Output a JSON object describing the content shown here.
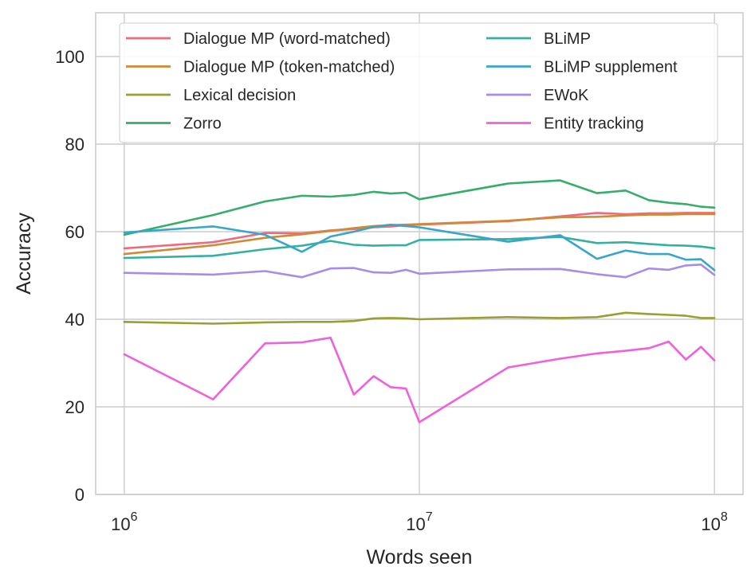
{
  "chart_data": {
    "type": "line",
    "xlabel": "Words seen",
    "ylabel": "Accuracy",
    "x_scale": "log",
    "xlim": [
      800000,
      125000000
    ],
    "ylim": [
      0,
      110
    ],
    "grid": true,
    "legend_position": "top",
    "x_ticks": [
      {
        "value": 1000000,
        "base": "10",
        "exp": "6"
      },
      {
        "value": 10000000,
        "base": "10",
        "exp": "7"
      },
      {
        "value": 100000000,
        "base": "10",
        "exp": "8"
      }
    ],
    "y_ticks": [
      {
        "value": 0,
        "label": "0"
      },
      {
        "value": 20,
        "label": "20"
      },
      {
        "value": 40,
        "label": "40"
      },
      {
        "value": 60,
        "label": "60"
      },
      {
        "value": 80,
        "label": "80"
      },
      {
        "value": 100,
        "label": "100"
      }
    ],
    "series": [
      {
        "name": "Dialogue MP (word-matched)",
        "color": "#f0697d",
        "legend_col": 0,
        "points": [
          [
            1000000,
            56.2
          ],
          [
            2000000,
            57.6
          ],
          [
            3000000,
            59.7
          ],
          [
            4000000,
            59.6
          ],
          [
            5000000,
            60.3
          ],
          [
            6000000,
            60.6
          ],
          [
            7000000,
            61.0
          ],
          [
            8000000,
            61.2
          ],
          [
            9000000,
            61.5
          ],
          [
            10000000,
            61.6
          ],
          [
            20000000,
            62.4
          ],
          [
            30000000,
            63.5
          ],
          [
            40000000,
            64.3
          ],
          [
            50000000,
            64.0
          ],
          [
            60000000,
            64.2
          ],
          [
            70000000,
            64.2
          ],
          [
            80000000,
            64.3
          ],
          [
            90000000,
            64.3
          ],
          [
            100000000,
            64.3
          ]
        ]
      },
      {
        "name": "Dialogue MP (token-matched)",
        "color": "#d08a35",
        "legend_col": 0,
        "points": [
          [
            1000000,
            54.9
          ],
          [
            2000000,
            56.9
          ],
          [
            3000000,
            58.6
          ],
          [
            4000000,
            59.4
          ],
          [
            5000000,
            60.2
          ],
          [
            6000000,
            60.8
          ],
          [
            7000000,
            61.3
          ],
          [
            8000000,
            61.5
          ],
          [
            9000000,
            61.6
          ],
          [
            10000000,
            61.7
          ],
          [
            20000000,
            62.5
          ],
          [
            30000000,
            63.3
          ],
          [
            40000000,
            63.4
          ],
          [
            50000000,
            63.7
          ],
          [
            60000000,
            63.9
          ],
          [
            70000000,
            63.9
          ],
          [
            80000000,
            64.0
          ],
          [
            90000000,
            64.0
          ],
          [
            100000000,
            64.0
          ]
        ]
      },
      {
        "name": "Lexical decision",
        "color": "#98a032",
        "legend_col": 0,
        "points": [
          [
            1000000,
            39.4
          ],
          [
            2000000,
            39.0
          ],
          [
            3000000,
            39.3
          ],
          [
            4000000,
            39.4
          ],
          [
            5000000,
            39.4
          ],
          [
            6000000,
            39.6
          ],
          [
            7000000,
            40.2
          ],
          [
            8000000,
            40.3
          ],
          [
            9000000,
            40.2
          ],
          [
            10000000,
            40.0
          ],
          [
            20000000,
            40.5
          ],
          [
            30000000,
            40.3
          ],
          [
            40000000,
            40.5
          ],
          [
            50000000,
            41.5
          ],
          [
            60000000,
            41.2
          ],
          [
            70000000,
            41.0
          ],
          [
            80000000,
            40.8
          ],
          [
            90000000,
            40.3
          ],
          [
            100000000,
            40.3
          ]
        ]
      },
      {
        "name": "Zorro",
        "color": "#35ad6b",
        "legend_col": 0,
        "points": [
          [
            1000000,
            59.3
          ],
          [
            2000000,
            63.8
          ],
          [
            3000000,
            66.9
          ],
          [
            4000000,
            68.2
          ],
          [
            5000000,
            68.0
          ],
          [
            6000000,
            68.4
          ],
          [
            7000000,
            69.1
          ],
          [
            8000000,
            68.7
          ],
          [
            9000000,
            68.9
          ],
          [
            10000000,
            67.4
          ],
          [
            20000000,
            71.0
          ],
          [
            30000000,
            71.7
          ],
          [
            40000000,
            68.8
          ],
          [
            50000000,
            69.4
          ],
          [
            60000000,
            67.2
          ],
          [
            70000000,
            66.6
          ],
          [
            80000000,
            66.3
          ],
          [
            90000000,
            65.7
          ],
          [
            100000000,
            65.5
          ]
        ]
      },
      {
        "name": "BLiMP",
        "color": "#33b0a0",
        "legend_col": 1,
        "points": [
          [
            1000000,
            54.0
          ],
          [
            2000000,
            54.5
          ],
          [
            3000000,
            56.0
          ],
          [
            4000000,
            56.8
          ],
          [
            5000000,
            57.9
          ],
          [
            6000000,
            57.0
          ],
          [
            7000000,
            56.8
          ],
          [
            8000000,
            56.9
          ],
          [
            9000000,
            56.9
          ],
          [
            10000000,
            58.1
          ],
          [
            20000000,
            58.3
          ],
          [
            30000000,
            58.8
          ],
          [
            40000000,
            57.4
          ],
          [
            50000000,
            57.6
          ],
          [
            60000000,
            57.2
          ],
          [
            70000000,
            56.9
          ],
          [
            80000000,
            56.8
          ],
          [
            90000000,
            56.6
          ],
          [
            100000000,
            56.2
          ]
        ]
      },
      {
        "name": "BLiMP supplement",
        "color": "#39a6c9",
        "legend_col": 1,
        "points": [
          [
            1000000,
            59.8
          ],
          [
            2000000,
            61.2
          ],
          [
            3000000,
            59.3
          ],
          [
            4000000,
            55.4
          ],
          [
            5000000,
            58.9
          ],
          [
            6000000,
            60.0
          ],
          [
            7000000,
            61.1
          ],
          [
            8000000,
            61.6
          ],
          [
            9000000,
            61.3
          ],
          [
            10000000,
            61.0
          ],
          [
            20000000,
            57.7
          ],
          [
            30000000,
            59.2
          ],
          [
            40000000,
            53.8
          ],
          [
            50000000,
            55.7
          ],
          [
            60000000,
            54.9
          ],
          [
            70000000,
            54.9
          ],
          [
            80000000,
            53.6
          ],
          [
            90000000,
            53.7
          ],
          [
            100000000,
            51.2
          ]
        ]
      },
      {
        "name": "EWoK",
        "color": "#a78ce9",
        "legend_col": 1,
        "points": [
          [
            1000000,
            50.6
          ],
          [
            2000000,
            50.2
          ],
          [
            3000000,
            51.0
          ],
          [
            4000000,
            49.6
          ],
          [
            5000000,
            51.6
          ],
          [
            6000000,
            51.7
          ],
          [
            7000000,
            50.7
          ],
          [
            8000000,
            50.6
          ],
          [
            9000000,
            51.3
          ],
          [
            10000000,
            50.4
          ],
          [
            20000000,
            51.4
          ],
          [
            30000000,
            51.5
          ],
          [
            40000000,
            50.3
          ],
          [
            50000000,
            49.6
          ],
          [
            60000000,
            51.6
          ],
          [
            70000000,
            51.3
          ],
          [
            80000000,
            52.3
          ],
          [
            90000000,
            52.5
          ],
          [
            100000000,
            50.1
          ]
        ]
      },
      {
        "name": "Entity tracking",
        "color": "#f060d8",
        "legend_col": 1,
        "points": [
          [
            1000000,
            32.0
          ],
          [
            2000000,
            21.7
          ],
          [
            3000000,
            34.5
          ],
          [
            4000000,
            34.7
          ],
          [
            5000000,
            35.8
          ],
          [
            6000000,
            22.8
          ],
          [
            7000000,
            27.0
          ],
          [
            8000000,
            24.5
          ],
          [
            9000000,
            24.2
          ],
          [
            10000000,
            16.5
          ],
          [
            20000000,
            29.0
          ],
          [
            30000000,
            31.0
          ],
          [
            40000000,
            32.2
          ],
          [
            50000000,
            32.8
          ],
          [
            60000000,
            33.4
          ],
          [
            70000000,
            34.9
          ],
          [
            80000000,
            30.8
          ],
          [
            90000000,
            33.7
          ],
          [
            100000000,
            30.6
          ]
        ]
      }
    ]
  }
}
